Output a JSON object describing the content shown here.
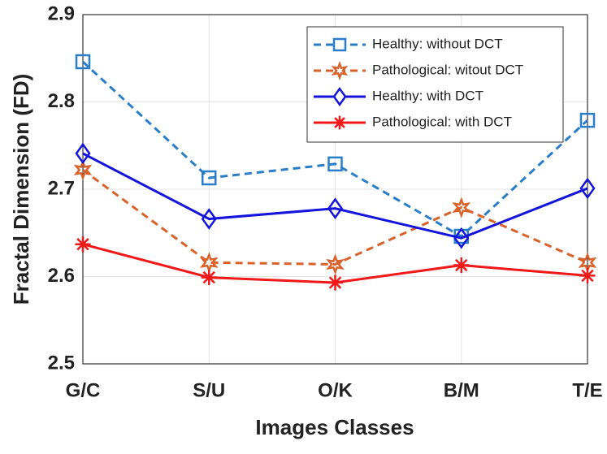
{
  "chart_data": {
    "type": "line",
    "categories": [
      "G/C",
      "S/U",
      "O/K",
      "B/M",
      "T/E"
    ],
    "series": [
      {
        "name": "Healthy: without DCT",
        "color": "#2a7ec9",
        "style": "dashed",
        "marker": "square",
        "values": [
          2.846,
          2.713,
          2.729,
          2.646,
          2.779
        ]
      },
      {
        "name": "Pathological: witout DCT",
        "color": "#d9622b",
        "style": "dashed",
        "marker": "star",
        "values": [
          2.722,
          2.616,
          2.614,
          2.679,
          2.616
        ]
      },
      {
        "name": "Healthy: with DCT",
        "color": "#1414dc",
        "style": "solid",
        "marker": "diamond",
        "values": [
          2.741,
          2.666,
          2.678,
          2.644,
          2.701
        ]
      },
      {
        "name": "Pathological: with DCT",
        "color": "#f01818",
        "style": "solid",
        "marker": "asterisk",
        "values": [
          2.637,
          2.599,
          2.593,
          2.613,
          2.601
        ]
      }
    ],
    "xlabel": "Images Classes",
    "ylabel": "Fractal Dimension (FD)",
    "ylim": [
      2.5,
      2.9
    ],
    "yticks": [
      2.5,
      2.6,
      2.7,
      2.8,
      2.9
    ],
    "grid": true,
    "legend": "upper right"
  }
}
